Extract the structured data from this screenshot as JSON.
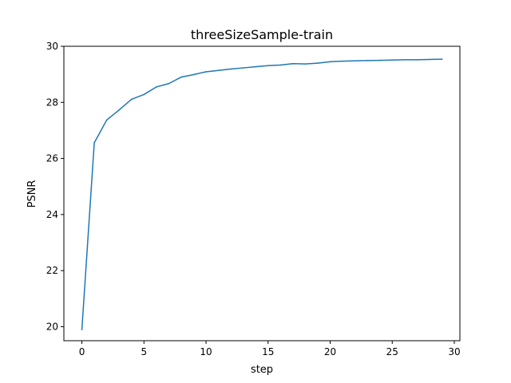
{
  "chart_data": {
    "type": "line",
    "title": "threeSizeSample-train",
    "xlabel": "step",
    "ylabel": "PSNR",
    "xlim": [
      -1.45,
      30.45
    ],
    "ylim": [
      19.5,
      30.0
    ],
    "xticks": [
      0,
      5,
      10,
      15,
      20,
      25,
      30
    ],
    "yticks": [
      20,
      22,
      24,
      26,
      28,
      30
    ],
    "grid": false,
    "series": [
      {
        "color": "#1f77b4",
        "x": [
          0,
          1,
          2,
          3,
          4,
          5,
          6,
          7,
          8,
          9,
          10,
          11,
          12,
          13,
          14,
          15,
          16,
          17,
          18,
          19,
          20,
          21,
          22,
          23,
          24,
          25,
          26,
          27,
          28,
          29
        ],
        "values": [
          19.9,
          26.56,
          27.37,
          27.73,
          28.11,
          28.28,
          28.55,
          28.67,
          28.9,
          28.99,
          29.09,
          29.14,
          29.19,
          29.23,
          29.27,
          29.31,
          29.33,
          29.38,
          29.37,
          29.4,
          29.45,
          29.47,
          29.48,
          29.49,
          29.5,
          29.51,
          29.52,
          29.52,
          29.53,
          29.54
        ]
      }
    ]
  }
}
